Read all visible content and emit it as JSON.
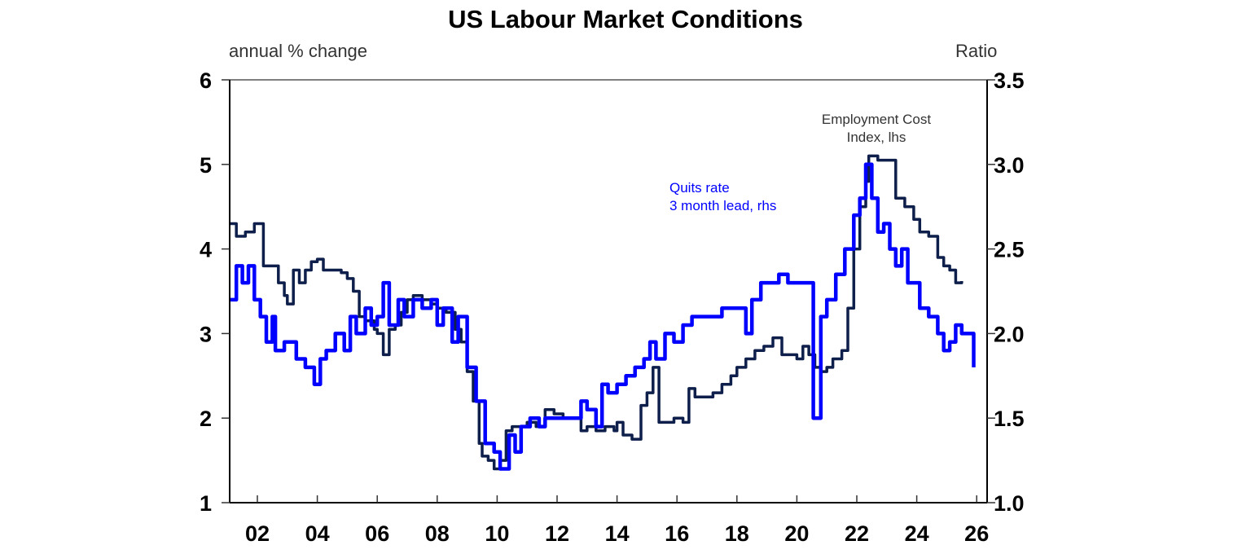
{
  "chart_data": {
    "type": "line",
    "title": "US Labour Market Conditions",
    "ylabel_left": "annual % change",
    "ylabel_right": "Ratio",
    "xlabel": "",
    "x_ticks": [
      "02",
      "04",
      "06",
      "08",
      "10",
      "12",
      "14",
      "16",
      "18",
      "20",
      "22",
      "24",
      "26"
    ],
    "y_left_ticks": [
      "1",
      "2",
      "3",
      "4",
      "5",
      "6"
    ],
    "y_right_ticks": [
      "1.0",
      "1.5",
      "2.0",
      "2.5",
      "3.0",
      "3.5"
    ],
    "ylim_left": [
      1,
      6
    ],
    "ylim_right": [
      1.0,
      3.5
    ],
    "xlim": [
      2001.1,
      2026.4
    ],
    "grid": false,
    "colors": {
      "eci": "#0d1f4a",
      "quits": "#0000ff",
      "axis": "#000000"
    },
    "annotations": [
      {
        "text_lines": [
          "Employment Cost",
          "Index, lhs"
        ],
        "color": "#333333"
      },
      {
        "text_lines": [
          "Quits rate",
          "3 month lead, rhs"
        ],
        "color": "#0000ff"
      }
    ],
    "series": [
      {
        "name": "Employment Cost Index, lhs",
        "axis": "left",
        "points": [
          [
            2001.1,
            4.3
          ],
          [
            2001.3,
            4.15
          ],
          [
            2001.6,
            4.2
          ],
          [
            2001.9,
            4.3
          ],
          [
            2002.2,
            3.8
          ],
          [
            2002.5,
            3.8
          ],
          [
            2002.7,
            3.6
          ],
          [
            2002.9,
            3.45
          ],
          [
            2003.0,
            3.35
          ],
          [
            2003.2,
            3.75
          ],
          [
            2003.4,
            3.6
          ],
          [
            2003.6,
            3.75
          ],
          [
            2003.8,
            3.85
          ],
          [
            2004.0,
            3.88
          ],
          [
            2004.2,
            3.75
          ],
          [
            2004.5,
            3.75
          ],
          [
            2004.8,
            3.72
          ],
          [
            2005.0,
            3.65
          ],
          [
            2005.2,
            3.5
          ],
          [
            2005.4,
            3.2
          ],
          [
            2005.6,
            3.15
          ],
          [
            2005.9,
            3.05
          ],
          [
            2006.0,
            3.0
          ],
          [
            2006.2,
            2.75
          ],
          [
            2006.4,
            3.05
          ],
          [
            2006.6,
            3.1
          ],
          [
            2006.8,
            3.25
          ],
          [
            2007.0,
            3.4
          ],
          [
            2007.2,
            3.45
          ],
          [
            2007.5,
            3.4
          ],
          [
            2007.8,
            3.35
          ],
          [
            2008.0,
            3.3
          ],
          [
            2008.3,
            3.25
          ],
          [
            2008.6,
            3.05
          ],
          [
            2008.8,
            2.9
          ],
          [
            2009.0,
            2.55
          ],
          [
            2009.2,
            2.2
          ],
          [
            2009.4,
            1.7
          ],
          [
            2009.5,
            1.55
          ],
          [
            2009.7,
            1.5
          ],
          [
            2009.9,
            1.4
          ],
          [
            2010.1,
            1.5
          ],
          [
            2010.3,
            1.85
          ],
          [
            2010.5,
            1.9
          ],
          [
            2010.8,
            1.9
          ],
          [
            2011.0,
            1.95
          ],
          [
            2011.3,
            1.9
          ],
          [
            2011.6,
            2.1
          ],
          [
            2011.9,
            2.05
          ],
          [
            2012.2,
            2.0
          ],
          [
            2012.5,
            2.0
          ],
          [
            2012.8,
            1.85
          ],
          [
            2013.0,
            1.9
          ],
          [
            2013.3,
            1.85
          ],
          [
            2013.6,
            1.9
          ],
          [
            2013.9,
            1.85
          ],
          [
            2014.0,
            1.95
          ],
          [
            2014.2,
            1.8
          ],
          [
            2014.5,
            1.75
          ],
          [
            2014.8,
            2.15
          ],
          [
            2015.0,
            2.3
          ],
          [
            2015.2,
            2.6
          ],
          [
            2015.4,
            1.95
          ],
          [
            2015.7,
            1.95
          ],
          [
            2015.9,
            2.0
          ],
          [
            2016.2,
            1.95
          ],
          [
            2016.4,
            2.35
          ],
          [
            2016.6,
            2.25
          ],
          [
            2016.9,
            2.25
          ],
          [
            2017.2,
            2.3
          ],
          [
            2017.5,
            2.4
          ],
          [
            2017.8,
            2.5
          ],
          [
            2018.0,
            2.6
          ],
          [
            2018.3,
            2.7
          ],
          [
            2018.6,
            2.8
          ],
          [
            2018.9,
            2.85
          ],
          [
            2019.2,
            2.95
          ],
          [
            2019.5,
            2.75
          ],
          [
            2019.8,
            2.75
          ],
          [
            2020.0,
            2.7
          ],
          [
            2020.2,
            2.85
          ],
          [
            2020.4,
            2.75
          ],
          [
            2020.6,
            2.6
          ],
          [
            2020.8,
            2.55
          ],
          [
            2021.0,
            2.6
          ],
          [
            2021.2,
            2.7
          ],
          [
            2021.5,
            2.8
          ],
          [
            2021.7,
            3.3
          ],
          [
            2021.9,
            4.0
          ],
          [
            2022.1,
            4.5
          ],
          [
            2022.3,
            4.8
          ],
          [
            2022.4,
            5.1
          ],
          [
            2022.7,
            5.05
          ],
          [
            2023.0,
            5.05
          ],
          [
            2023.3,
            4.6
          ],
          [
            2023.6,
            4.5
          ],
          [
            2023.9,
            4.35
          ],
          [
            2024.1,
            4.2
          ],
          [
            2024.4,
            4.15
          ],
          [
            2024.7,
            3.9
          ],
          [
            2024.9,
            3.8
          ],
          [
            2025.1,
            3.75
          ],
          [
            2025.3,
            3.6
          ],
          [
            2025.5,
            3.62
          ]
        ]
      },
      {
        "name": "Quits rate 3 month lead, rhs",
        "axis": "right",
        "points": [
          [
            2001.1,
            2.2
          ],
          [
            2001.3,
            2.4
          ],
          [
            2001.5,
            2.3
          ],
          [
            2001.7,
            2.4
          ],
          [
            2001.9,
            2.2
          ],
          [
            2002.1,
            2.1
          ],
          [
            2002.3,
            1.95
          ],
          [
            2002.5,
            2.1
          ],
          [
            2002.6,
            1.9
          ],
          [
            2002.9,
            1.95
          ],
          [
            2003.1,
            1.95
          ],
          [
            2003.3,
            1.85
          ],
          [
            2003.6,
            1.8
          ],
          [
            2003.9,
            1.7
          ],
          [
            2004.1,
            1.85
          ],
          [
            2004.3,
            1.9
          ],
          [
            2004.6,
            2.0
          ],
          [
            2004.9,
            1.9
          ],
          [
            2005.1,
            2.1
          ],
          [
            2005.3,
            2.0
          ],
          [
            2005.6,
            2.15
          ],
          [
            2005.8,
            2.05
          ],
          [
            2006.0,
            2.1
          ],
          [
            2006.2,
            2.3
          ],
          [
            2006.4,
            2.05
          ],
          [
            2006.7,
            2.2
          ],
          [
            2006.9,
            2.1
          ],
          [
            2007.2,
            2.2
          ],
          [
            2007.5,
            2.15
          ],
          [
            2007.8,
            2.2
          ],
          [
            2008.0,
            2.05
          ],
          [
            2008.2,
            2.15
          ],
          [
            2008.5,
            1.95
          ],
          [
            2008.7,
            2.1
          ],
          [
            2009.0,
            1.8
          ],
          [
            2009.3,
            1.6
          ],
          [
            2009.6,
            1.35
          ],
          [
            2009.9,
            1.3
          ],
          [
            2010.1,
            1.2
          ],
          [
            2010.4,
            1.4
          ],
          [
            2010.6,
            1.3
          ],
          [
            2010.8,
            1.45
          ],
          [
            2011.1,
            1.5
          ],
          [
            2011.4,
            1.45
          ],
          [
            2011.6,
            1.5
          ],
          [
            2011.9,
            1.5
          ],
          [
            2012.2,
            1.5
          ],
          [
            2012.5,
            1.5
          ],
          [
            2012.8,
            1.6
          ],
          [
            2013.0,
            1.55
          ],
          [
            2013.3,
            1.45
          ],
          [
            2013.5,
            1.7
          ],
          [
            2013.7,
            1.65
          ],
          [
            2014.0,
            1.7
          ],
          [
            2014.3,
            1.75
          ],
          [
            2014.6,
            1.8
          ],
          [
            2014.9,
            1.85
          ],
          [
            2015.1,
            1.95
          ],
          [
            2015.3,
            1.85
          ],
          [
            2015.6,
            2.0
          ],
          [
            2015.9,
            1.95
          ],
          [
            2016.2,
            2.05
          ],
          [
            2016.5,
            2.1
          ],
          [
            2016.9,
            2.1
          ],
          [
            2017.2,
            2.1
          ],
          [
            2017.5,
            2.15
          ],
          [
            2017.8,
            2.15
          ],
          [
            2018.1,
            2.15
          ],
          [
            2018.3,
            2.0
          ],
          [
            2018.5,
            2.2
          ],
          [
            2018.8,
            2.3
          ],
          [
            2019.1,
            2.3
          ],
          [
            2019.4,
            2.35
          ],
          [
            2019.7,
            2.3
          ],
          [
            2020.0,
            2.3
          ],
          [
            2020.3,
            2.3
          ],
          [
            2020.55,
            1.5
          ],
          [
            2020.8,
            2.1
          ],
          [
            2021.0,
            2.2
          ],
          [
            2021.3,
            2.35
          ],
          [
            2021.6,
            2.5
          ],
          [
            2021.9,
            2.7
          ],
          [
            2022.1,
            2.8
          ],
          [
            2022.3,
            3.0
          ],
          [
            2022.5,
            2.8
          ],
          [
            2022.7,
            2.6
          ],
          [
            2022.9,
            2.65
          ],
          [
            2023.1,
            2.5
          ],
          [
            2023.3,
            2.4
          ],
          [
            2023.5,
            2.5
          ],
          [
            2023.7,
            2.3
          ],
          [
            2023.9,
            2.3
          ],
          [
            2024.1,
            2.15
          ],
          [
            2024.4,
            2.1
          ],
          [
            2024.7,
            2.0
          ],
          [
            2024.9,
            1.9
          ],
          [
            2025.1,
            1.95
          ],
          [
            2025.3,
            2.05
          ],
          [
            2025.5,
            2.0
          ],
          [
            2025.7,
            2.0
          ],
          [
            2025.9,
            1.8
          ]
        ]
      }
    ]
  }
}
